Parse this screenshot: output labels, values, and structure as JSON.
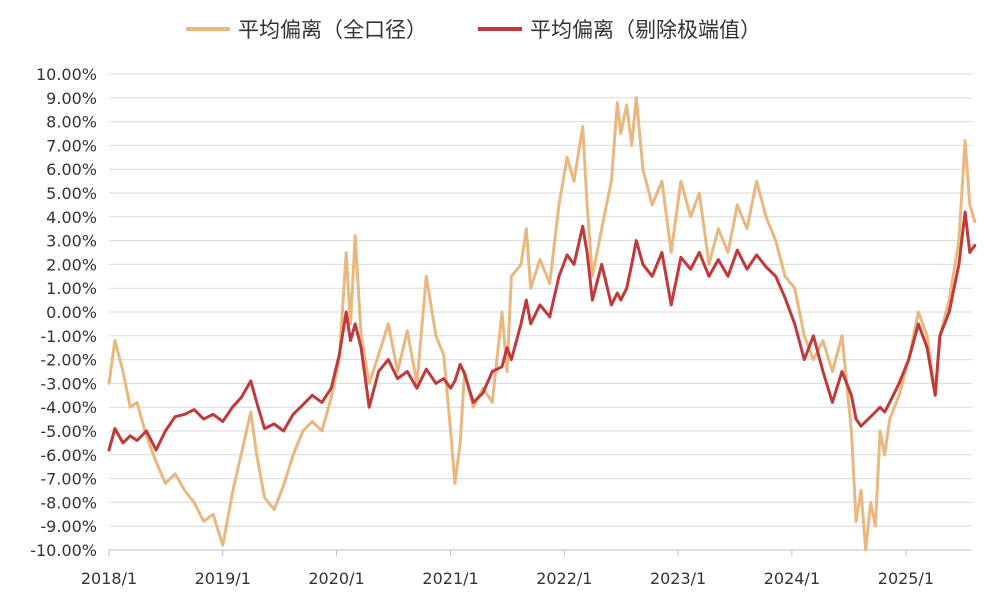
{
  "chart_data": {
    "type": "line",
    "title": "",
    "xlabel": "",
    "ylabel": "",
    "x_ticks": [
      "2018/1",
      "2019/1",
      "2020/1",
      "2021/1",
      "2022/1",
      "2023/1",
      "2024/1",
      "2025/1"
    ],
    "y_ticks": [
      "10.00%",
      "9.00%",
      "8.00%",
      "7.00%",
      "6.00%",
      "5.00%",
      "4.00%",
      "3.00%",
      "2.00%",
      "1.00%",
      "0.00%",
      "-1.00%",
      "-2.00%",
      "-3.00%",
      "-4.00%",
      "-5.00%",
      "-6.00%",
      "-7.00%",
      "-8.00%",
      "-9.00%",
      "-10.00%"
    ],
    "ylim": [
      -10,
      10
    ],
    "x_range": [
      "2018-01",
      "2025-08"
    ],
    "y_unit": "%",
    "grid": "horizontal",
    "legend_position": "top",
    "series": [
      {
        "name": "平均偏离（全口径）",
        "color": "#E9B880",
        "values": [
          [
            "2018-01-01",
            -3.0
          ],
          [
            "2018-01-20",
            -1.2
          ],
          [
            "2018-02-15",
            -2.5
          ],
          [
            "2018-03-10",
            -4.0
          ],
          [
            "2018-04-01",
            -3.8
          ],
          [
            "2018-05-01",
            -5.2
          ],
          [
            "2018-06-01",
            -6.3
          ],
          [
            "2018-07-01",
            -7.2
          ],
          [
            "2018-08-01",
            -6.8
          ],
          [
            "2018-09-01",
            -7.5
          ],
          [
            "2018-10-01",
            -8.0
          ],
          [
            "2018-11-01",
            -8.8
          ],
          [
            "2018-12-01",
            -8.5
          ],
          [
            "2019-01-01",
            -9.8
          ],
          [
            "2019-02-01",
            -7.6
          ],
          [
            "2019-03-01",
            -6.0
          ],
          [
            "2019-04-01",
            -4.2
          ],
          [
            "2019-04-20",
            -6.0
          ],
          [
            "2019-05-15",
            -7.8
          ],
          [
            "2019-06-15",
            -8.3
          ],
          [
            "2019-07-15",
            -7.3
          ],
          [
            "2019-08-15",
            -6.0
          ],
          [
            "2019-09-15",
            -5.0
          ],
          [
            "2019-10-15",
            -4.6
          ],
          [
            "2019-11-15",
            -5.0
          ],
          [
            "2019-12-15",
            -3.6
          ],
          [
            "2020-01-10",
            -2.0
          ],
          [
            "2020-02-01",
            2.5
          ],
          [
            "2020-02-15",
            -0.5
          ],
          [
            "2020-03-01",
            3.2
          ],
          [
            "2020-03-20",
            -1.0
          ],
          [
            "2020-04-15",
            -3.0
          ],
          [
            "2020-05-15",
            -1.8
          ],
          [
            "2020-06-15",
            -0.5
          ],
          [
            "2020-07-15",
            -2.5
          ],
          [
            "2020-08-15",
            -0.8
          ],
          [
            "2020-09-15",
            -3.0
          ],
          [
            "2020-10-15",
            1.5
          ],
          [
            "2020-11-15",
            -1.0
          ],
          [
            "2020-12-10",
            -1.8
          ],
          [
            "2021-01-01",
            -5.0
          ],
          [
            "2021-01-15",
            -7.2
          ],
          [
            "2021-02-01",
            -5.5
          ],
          [
            "2021-02-15",
            -2.5
          ],
          [
            "2021-03-15",
            -4.0
          ],
          [
            "2021-04-15",
            -3.2
          ],
          [
            "2021-05-15",
            -3.8
          ],
          [
            "2021-06-15",
            0.0
          ],
          [
            "2021-07-01",
            -2.5
          ],
          [
            "2021-07-15",
            1.5
          ],
          [
            "2021-08-15",
            2.0
          ],
          [
            "2021-09-01",
            3.5
          ],
          [
            "2021-09-15",
            1.0
          ],
          [
            "2021-10-15",
            2.2
          ],
          [
            "2021-11-15",
            1.2
          ],
          [
            "2021-12-15",
            4.5
          ],
          [
            "2022-01-10",
            6.5
          ],
          [
            "2022-02-01",
            5.5
          ],
          [
            "2022-03-01",
            7.8
          ],
          [
            "2022-03-15",
            4.5
          ],
          [
            "2022-04-01",
            1.5
          ],
          [
            "2022-05-01",
            3.5
          ],
          [
            "2022-06-01",
            5.5
          ],
          [
            "2022-06-20",
            8.8
          ],
          [
            "2022-07-01",
            7.5
          ],
          [
            "2022-07-20",
            8.7
          ],
          [
            "2022-08-05",
            7.0
          ],
          [
            "2022-08-20",
            9.0
          ],
          [
            "2022-09-10",
            6.0
          ],
          [
            "2022-10-10",
            4.5
          ],
          [
            "2022-11-10",
            5.5
          ],
          [
            "2022-12-10",
            2.5
          ],
          [
            "2023-01-10",
            5.5
          ],
          [
            "2023-02-10",
            4.0
          ],
          [
            "2023-03-10",
            5.0
          ],
          [
            "2023-04-10",
            2.0
          ],
          [
            "2023-05-10",
            3.5
          ],
          [
            "2023-06-10",
            2.5
          ],
          [
            "2023-07-10",
            4.5
          ],
          [
            "2023-08-10",
            3.5
          ],
          [
            "2023-09-10",
            5.5
          ],
          [
            "2023-10-10",
            4.0
          ],
          [
            "2023-11-10",
            3.0
          ],
          [
            "2023-12-10",
            1.5
          ],
          [
            "2024-01-10",
            1.0
          ],
          [
            "2024-02-10",
            -1.0
          ],
          [
            "2024-03-10",
            -2.0
          ],
          [
            "2024-04-10",
            -1.2
          ],
          [
            "2024-05-10",
            -2.5
          ],
          [
            "2024-06-10",
            -1.0
          ],
          [
            "2024-07-10",
            -5.0
          ],
          [
            "2024-07-25",
            -8.8
          ],
          [
            "2024-08-10",
            -7.5
          ],
          [
            "2024-08-25",
            -10.0
          ],
          [
            "2024-09-10",
            -8.0
          ],
          [
            "2024-09-25",
            -9.0
          ],
          [
            "2024-10-10",
            -5.0
          ],
          [
            "2024-10-25",
            -6.0
          ],
          [
            "2024-11-10",
            -4.5
          ],
          [
            "2024-12-10",
            -3.5
          ],
          [
            "2025-01-10",
            -2.0
          ],
          [
            "2025-02-10",
            0.0
          ],
          [
            "2025-03-10",
            -1.0
          ],
          [
            "2025-04-05",
            -3.5
          ],
          [
            "2025-04-20",
            -1.0
          ],
          [
            "2025-05-20",
            0.5
          ],
          [
            "2025-06-20",
            3.0
          ],
          [
            "2025-07-10",
            7.2
          ],
          [
            "2025-07-25",
            4.5
          ],
          [
            "2025-08-10",
            3.8
          ]
        ]
      },
      {
        "name": "平均偏离（剔除极端值）",
        "color": "#C0393B",
        "values": [
          [
            "2018-01-01",
            -5.8
          ],
          [
            "2018-01-20",
            -4.9
          ],
          [
            "2018-02-15",
            -5.5
          ],
          [
            "2018-03-10",
            -5.2
          ],
          [
            "2018-04-01",
            -5.4
          ],
          [
            "2018-05-01",
            -5.0
          ],
          [
            "2018-06-01",
            -5.8
          ],
          [
            "2018-07-01",
            -5.0
          ],
          [
            "2018-08-01",
            -4.4
          ],
          [
            "2018-09-01",
            -4.3
          ],
          [
            "2018-10-01",
            -4.1
          ],
          [
            "2018-11-01",
            -4.5
          ],
          [
            "2018-12-01",
            -4.3
          ],
          [
            "2019-01-01",
            -4.6
          ],
          [
            "2019-02-01",
            -4.0
          ],
          [
            "2019-03-01",
            -3.6
          ],
          [
            "2019-04-01",
            -2.9
          ],
          [
            "2019-04-20",
            -3.8
          ],
          [
            "2019-05-15",
            -4.9
          ],
          [
            "2019-06-15",
            -4.7
          ],
          [
            "2019-07-15",
            -5.0
          ],
          [
            "2019-08-15",
            -4.3
          ],
          [
            "2019-09-15",
            -3.9
          ],
          [
            "2019-10-15",
            -3.5
          ],
          [
            "2019-11-15",
            -3.8
          ],
          [
            "2019-12-15",
            -3.2
          ],
          [
            "2020-01-10",
            -1.8
          ],
          [
            "2020-02-01",
            0.0
          ],
          [
            "2020-02-15",
            -1.2
          ],
          [
            "2020-03-01",
            -0.5
          ],
          [
            "2020-03-20",
            -1.5
          ],
          [
            "2020-04-15",
            -4.0
          ],
          [
            "2020-05-15",
            -2.5
          ],
          [
            "2020-06-15",
            -2.0
          ],
          [
            "2020-07-15",
            -2.8
          ],
          [
            "2020-08-15",
            -2.5
          ],
          [
            "2020-09-15",
            -3.2
          ],
          [
            "2020-10-15",
            -2.4
          ],
          [
            "2020-11-15",
            -3.0
          ],
          [
            "2020-12-10",
            -2.8
          ],
          [
            "2021-01-01",
            -3.2
          ],
          [
            "2021-01-15",
            -2.9
          ],
          [
            "2021-02-01",
            -2.2
          ],
          [
            "2021-02-15",
            -2.6
          ],
          [
            "2021-03-15",
            -3.8
          ],
          [
            "2021-04-15",
            -3.4
          ],
          [
            "2021-05-15",
            -2.5
          ],
          [
            "2021-06-15",
            -2.3
          ],
          [
            "2021-07-01",
            -1.5
          ],
          [
            "2021-07-15",
            -2.0
          ],
          [
            "2021-08-15",
            -0.5
          ],
          [
            "2021-09-01",
            0.5
          ],
          [
            "2021-09-15",
            -0.5
          ],
          [
            "2021-10-15",
            0.3
          ],
          [
            "2021-11-15",
            -0.2
          ],
          [
            "2021-12-15",
            1.5
          ],
          [
            "2022-01-10",
            2.4
          ],
          [
            "2022-02-01",
            2.0
          ],
          [
            "2022-03-01",
            3.6
          ],
          [
            "2022-03-15",
            2.5
          ],
          [
            "2022-04-01",
            0.5
          ],
          [
            "2022-05-01",
            2.0
          ],
          [
            "2022-06-01",
            0.3
          ],
          [
            "2022-06-20",
            0.8
          ],
          [
            "2022-07-01",
            0.5
          ],
          [
            "2022-07-20",
            1.0
          ],
          [
            "2022-08-05",
            2.0
          ],
          [
            "2022-08-20",
            3.0
          ],
          [
            "2022-09-10",
            2.0
          ],
          [
            "2022-10-10",
            1.5
          ],
          [
            "2022-11-10",
            2.5
          ],
          [
            "2022-12-10",
            0.3
          ],
          [
            "2023-01-10",
            2.3
          ],
          [
            "2023-02-10",
            1.8
          ],
          [
            "2023-03-10",
            2.5
          ],
          [
            "2023-04-10",
            1.5
          ],
          [
            "2023-05-10",
            2.2
          ],
          [
            "2023-06-10",
            1.5
          ],
          [
            "2023-07-10",
            2.6
          ],
          [
            "2023-08-10",
            1.8
          ],
          [
            "2023-09-10",
            2.4
          ],
          [
            "2023-10-10",
            1.9
          ],
          [
            "2023-11-10",
            1.5
          ],
          [
            "2023-12-10",
            0.6
          ],
          [
            "2024-01-10",
            -0.5
          ],
          [
            "2024-02-10",
            -2.0
          ],
          [
            "2024-03-10",
            -1.0
          ],
          [
            "2024-04-10",
            -2.5
          ],
          [
            "2024-05-10",
            -3.8
          ],
          [
            "2024-06-10",
            -2.5
          ],
          [
            "2024-07-10",
            -3.5
          ],
          [
            "2024-07-25",
            -4.5
          ],
          [
            "2024-08-10",
            -4.8
          ],
          [
            "2024-08-25",
            -4.6
          ],
          [
            "2024-09-10",
            -4.4
          ],
          [
            "2024-09-25",
            -4.2
          ],
          [
            "2024-10-10",
            -4.0
          ],
          [
            "2024-10-25",
            -4.2
          ],
          [
            "2024-11-10",
            -3.8
          ],
          [
            "2024-12-10",
            -3.0
          ],
          [
            "2025-01-10",
            -2.0
          ],
          [
            "2025-02-10",
            -0.5
          ],
          [
            "2025-03-10",
            -1.5
          ],
          [
            "2025-04-05",
            -3.5
          ],
          [
            "2025-04-20",
            -1.0
          ],
          [
            "2025-05-20",
            0.0
          ],
          [
            "2025-06-20",
            2.0
          ],
          [
            "2025-07-10",
            4.2
          ],
          [
            "2025-07-25",
            2.5
          ],
          [
            "2025-08-10",
            2.8
          ]
        ]
      }
    ]
  }
}
